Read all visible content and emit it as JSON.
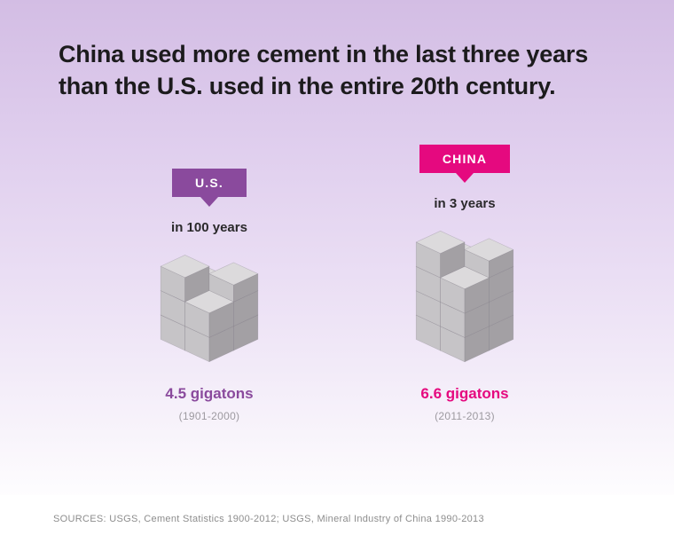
{
  "title": {
    "line1": "China used more cement in the last three years",
    "line2": "than the U.S. used in the entire 20th century."
  },
  "columns": [
    {
      "badge": "U.S.",
      "duration": "in 100 years",
      "value": "4.5 gigatons",
      "period": "(1901-2000)",
      "accent": "#8a4a9d"
    },
    {
      "badge": "CHINA",
      "duration": "in 3 years",
      "value": "6.6 gigatons",
      "period": "(2011-2013)",
      "accent": "#e5097f"
    }
  ],
  "footer": {
    "sources": "SOURCES: USGS, Cement Statistics 1900-2012; USGS, Mineral Industry of China 1990-2013"
  },
  "chart_data": {
    "type": "bar",
    "style": "isometric-block-pictogram",
    "title": "China used more cement in the last three years than the U.S. used in the entire 20th century.",
    "categories": [
      "U.S.",
      "CHINA"
    ],
    "values": [
      4.5,
      6.6
    ],
    "unit": "gigatons",
    "value_labels": [
      "4.5 gigatons",
      "6.6 gigatons"
    ],
    "durations": [
      "in 100 years",
      "in 3 years"
    ],
    "periods": [
      "1901-2000",
      "2011-2013"
    ],
    "block_layers": {
      "us": [
        4,
        4,
        2
      ],
      "china": [
        4,
        4,
        4,
        2
      ]
    },
    "legend_position": "none",
    "colors": {
      "us_accent": "#8a4a9d",
      "china_accent": "#e5097f",
      "block_top": "#dcdadc",
      "block_left": "#c6c4c7",
      "block_right": "#a3a0a4",
      "background_top": "#d3bde4",
      "background_bottom": "#ffffff"
    },
    "sources": "SOURCES: USGS, Cement Statistics 1900-2012; USGS, Mineral Industry of China 1990-2013"
  }
}
